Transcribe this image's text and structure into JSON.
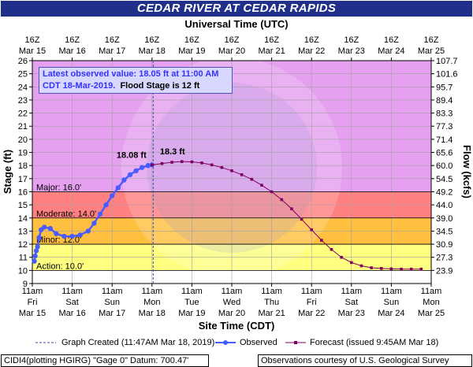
{
  "title": "CEDAR RIVER AT CEDAR RAPIDS",
  "top_axis_title": "Universal Time (UTC)",
  "bottom_axis_title": "Site Time (CDT)",
  "left_axis_title": "Stage (ft)",
  "right_axis_title": "Flow (kcfs)",
  "info": {
    "line1": "Latest observed value: 18.05 ft at 11:00 AM",
    "line2_obs": "CDT 18-Mar-2019.",
    "line2_flood": "Flood Stage is 12 ft"
  },
  "legend": {
    "graph_created": "Graph Created (11:47AM Mar 18, 2019)",
    "observed": "Observed",
    "forecast": "Forecast (issued 9:45AM Mar 18)"
  },
  "footer": {
    "left": "CIDI4(plotting HGIRG) \"Gage 0\" Datum: 700.47'",
    "right": "Observations courtesy of U.S. Geological Survey"
  },
  "colors": {
    "title_bg": "#1f2f8a",
    "major": "#e6a0f0",
    "moderate": "#ff8080",
    "minor": "#ffc040",
    "action": "#ffff80",
    "normal": "#ffffff",
    "observed": "#4a5cff",
    "forecast": "#800060"
  },
  "chart_data": {
    "type": "line",
    "title": "CEDAR RIVER AT CEDAR RAPIDS",
    "xlabel": "Site Time (CDT)",
    "ylabel": "Stage (ft)",
    "y2label": "Flow (kcfs)",
    "xlim": [
      "2019-03-15 11:00",
      "2019-03-25 11:00"
    ],
    "ylim": [
      9,
      26
    ],
    "grid": true,
    "bottom_ticks": [
      {
        "day": 0,
        "line1": "11am",
        "line2": "Fri",
        "line3": "Mar 15"
      },
      {
        "day": 1,
        "line1": "11am",
        "line2": "Sat",
        "line3": "Mar 16"
      },
      {
        "day": 2,
        "line1": "11am",
        "line2": "Sun",
        "line3": "Mar 17"
      },
      {
        "day": 3,
        "line1": "11am",
        "line2": "Mon",
        "line3": "Mar 18"
      },
      {
        "day": 4,
        "line1": "11am",
        "line2": "Tue",
        "line3": "Mar 19"
      },
      {
        "day": 5,
        "line1": "11am",
        "line2": "Wed",
        "line3": "Mar 20"
      },
      {
        "day": 6,
        "line1": "11am",
        "line2": "Thu",
        "line3": "Mar 21"
      },
      {
        "day": 7,
        "line1": "11am",
        "line2": "Fri",
        "line3": "Mar 22"
      },
      {
        "day": 8,
        "line1": "11am",
        "line2": "Sat",
        "line3": "Mar 23"
      },
      {
        "day": 9,
        "line1": "11am",
        "line2": "Sun",
        "line3": "Mar 24"
      },
      {
        "day": 10,
        "line1": "11am",
        "line2": "Mon",
        "line3": "Mar 25"
      }
    ],
    "top_ticks": [
      {
        "day": 0,
        "line1": "16Z",
        "line2": "Mar 15"
      },
      {
        "day": 1,
        "line1": "16Z",
        "line2": "Mar 16"
      },
      {
        "day": 2,
        "line1": "16Z",
        "line2": "Mar 17"
      },
      {
        "day": 3,
        "line1": "16Z",
        "line2": "Mar 18"
      },
      {
        "day": 4,
        "line1": "16Z",
        "line2": "Mar 19"
      },
      {
        "day": 5,
        "line1": "16Z",
        "line2": "Mar 20"
      },
      {
        "day": 6,
        "line1": "16Z",
        "line2": "Mar 21"
      },
      {
        "day": 7,
        "line1": "16Z",
        "line2": "Mar 22"
      },
      {
        "day": 8,
        "line1": "16Z",
        "line2": "Mar 23"
      },
      {
        "day": 9,
        "line1": "16Z",
        "line2": "Mar 24"
      },
      {
        "day": 10,
        "line1": "16Z",
        "line2": "Mar 25"
      }
    ],
    "stage_ticks": [
      9,
      10,
      11,
      12,
      13,
      14,
      15,
      16,
      17,
      18,
      19,
      20,
      21,
      22,
      23,
      24,
      25,
      26
    ],
    "flow_ticks": [
      {
        "stage": 10,
        "label": "23.9"
      },
      {
        "stage": 11,
        "label": "27.3"
      },
      {
        "stage": 12,
        "label": "30.9"
      },
      {
        "stage": 13,
        "label": "34.5"
      },
      {
        "stage": 14,
        "label": "39.0"
      },
      {
        "stage": 15,
        "label": "44.0"
      },
      {
        "stage": 16,
        "label": "49.2"
      },
      {
        "stage": 17,
        "label": "54.5"
      },
      {
        "stage": 18,
        "label": "60.0"
      },
      {
        "stage": 19,
        "label": "65.6"
      },
      {
        "stage": 20,
        "label": "71.4"
      },
      {
        "stage": 21,
        "label": "77.3"
      },
      {
        "stage": 22,
        "label": "83.3"
      },
      {
        "stage": 23,
        "label": "89.4"
      },
      {
        "stage": 24,
        "label": "95.7"
      },
      {
        "stage": 25,
        "label": "101.6"
      },
      {
        "stage": 26,
        "label": "107.7"
      }
    ],
    "flood_categories": [
      {
        "name": "Major",
        "label": "Major: 16.0'",
        "from": 16,
        "to": 26
      },
      {
        "name": "Moderate",
        "label": "Moderate: 14.0'",
        "from": 14,
        "to": 16
      },
      {
        "name": "Minor",
        "label": "Minor: 12.0'",
        "from": 12,
        "to": 14
      },
      {
        "name": "Action",
        "label": "Action: 10.0'",
        "from": 10,
        "to": 12
      }
    ],
    "graph_created_day": 3.03,
    "observed": {
      "name": "Observed",
      "peak_label": "18.08 ft",
      "points": [
        [
          0.05,
          10.7
        ],
        [
          0.07,
          11.1
        ],
        [
          0.1,
          11.5
        ],
        [
          0.13,
          11.8
        ],
        [
          0.17,
          12.5
        ],
        [
          0.22,
          13.1
        ],
        [
          0.3,
          13.3
        ],
        [
          0.45,
          13.2
        ],
        [
          0.6,
          12.8
        ],
        [
          0.8,
          12.6
        ],
        [
          1.0,
          12.6
        ],
        [
          1.2,
          12.7
        ],
        [
          1.4,
          13.0
        ],
        [
          1.55,
          13.6
        ],
        [
          1.7,
          14.3
        ],
        [
          1.85,
          15.0
        ],
        [
          2.0,
          15.7
        ],
        [
          2.15,
          16.3
        ],
        [
          2.3,
          16.9
        ],
        [
          2.45,
          17.3
        ],
        [
          2.6,
          17.6
        ],
        [
          2.75,
          17.85
        ],
        [
          2.9,
          18.0
        ],
        [
          3.0,
          18.05
        ]
      ]
    },
    "forecast": {
      "name": "Forecast (issued 9:45AM Mar 18)",
      "peak_label": "18.3 ft",
      "points": [
        [
          3.0,
          18.05
        ],
        [
          3.25,
          18.15
        ],
        [
          3.5,
          18.25
        ],
        [
          3.75,
          18.3
        ],
        [
          4.0,
          18.28
        ],
        [
          4.25,
          18.2
        ],
        [
          4.5,
          18.05
        ],
        [
          4.75,
          17.85
        ],
        [
          5.0,
          17.6
        ],
        [
          5.25,
          17.3
        ],
        [
          5.5,
          16.95
        ],
        [
          5.75,
          16.5
        ],
        [
          6.0,
          16.0
        ],
        [
          6.25,
          15.4
        ],
        [
          6.5,
          14.7
        ],
        [
          6.75,
          13.9
        ],
        [
          7.0,
          13.1
        ],
        [
          7.25,
          12.3
        ],
        [
          7.5,
          11.6
        ],
        [
          7.75,
          11.0
        ],
        [
          8.0,
          10.6
        ],
        [
          8.25,
          10.35
        ],
        [
          8.5,
          10.2
        ],
        [
          8.75,
          10.15
        ],
        [
          9.0,
          10.12
        ],
        [
          9.25,
          10.1
        ],
        [
          9.5,
          10.1
        ],
        [
          9.75,
          10.1
        ]
      ]
    }
  }
}
